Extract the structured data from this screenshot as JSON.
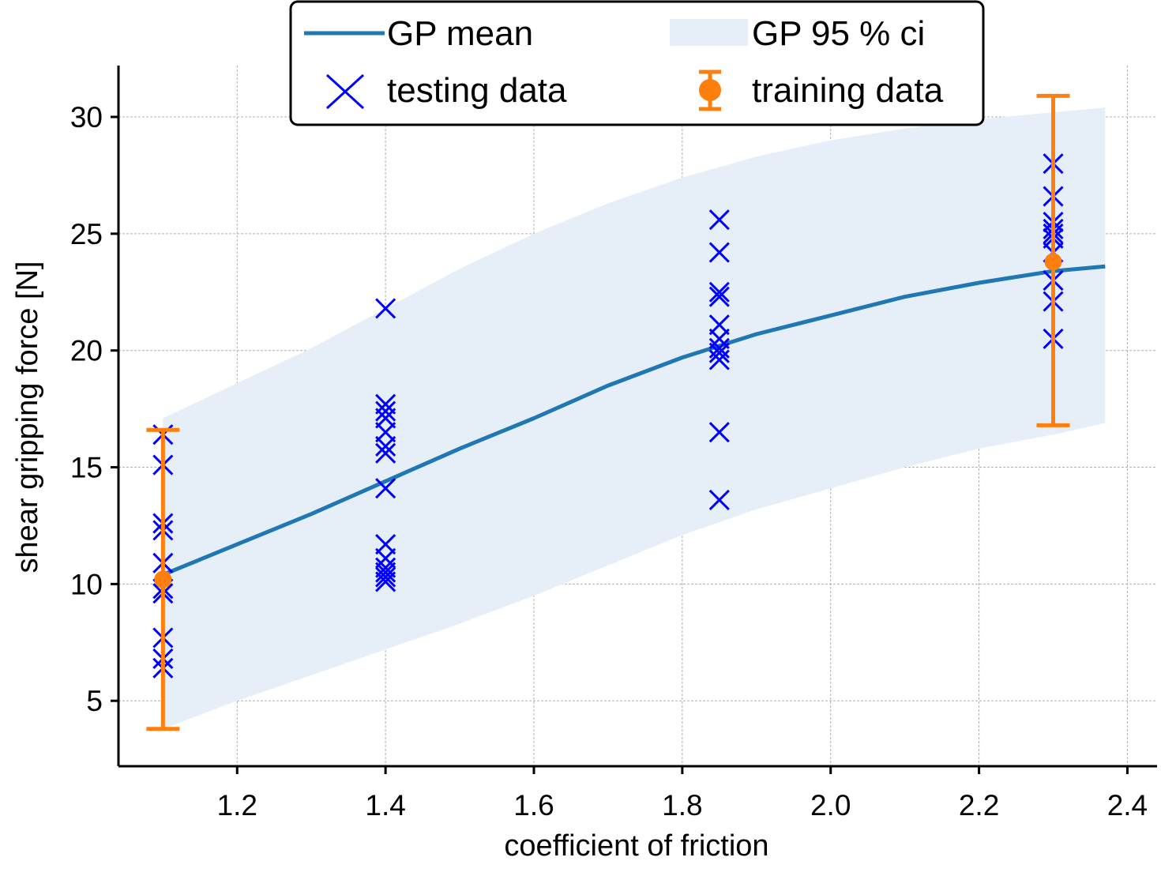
{
  "chart_data": {
    "type": "scatter",
    "title": "",
    "xlabel": "coefficient of friction",
    "ylabel": "shear gripping force [N]",
    "xlim": [
      1.04,
      2.44
    ],
    "ylim": [
      2.2,
      32.2
    ],
    "xticks": [
      1.2,
      1.4,
      1.6,
      1.8,
      2.0,
      2.2,
      2.4
    ],
    "xtick_labels": [
      "1.2",
      "1.4",
      "1.6",
      "1.8",
      "2.0",
      "2.2",
      "2.4"
    ],
    "yticks": [
      5,
      10,
      15,
      20,
      25,
      30
    ],
    "ytick_labels": [
      "5",
      "10",
      "15",
      "20",
      "25",
      "30"
    ],
    "grid": true,
    "legend_position": "top-center",
    "legend": {
      "gp_mean": "GP mean",
      "gp_ci": "GP 95 % ci",
      "testing": "testing data",
      "training": "training data"
    },
    "colors": {
      "gp_mean": "#1f77b4",
      "gp_ci": "#e6eff7",
      "testing": "#0000ff",
      "training": "#ff7f0e"
    },
    "gp_mean": {
      "x": [
        1.1,
        1.2,
        1.3,
        1.4,
        1.5,
        1.6,
        1.7,
        1.8,
        1.9,
        2.0,
        2.1,
        2.2,
        2.3,
        2.37
      ],
      "y": [
        10.4,
        11.7,
        13.0,
        14.4,
        15.8,
        17.1,
        18.5,
        19.7,
        20.7,
        21.5,
        22.3,
        22.9,
        23.4,
        23.6
      ]
    },
    "gp_ci": {
      "x": [
        1.1,
        1.2,
        1.3,
        1.4,
        1.5,
        1.6,
        1.7,
        1.8,
        1.9,
        2.0,
        2.1,
        2.2,
        2.3,
        2.37
      ],
      "lower": [
        3.8,
        5.0,
        6.1,
        7.2,
        8.3,
        9.5,
        10.8,
        12.1,
        13.2,
        14.1,
        15.0,
        15.8,
        16.4,
        16.9
      ],
      "upper": [
        17.1,
        18.6,
        20.1,
        21.8,
        23.5,
        25.0,
        26.3,
        27.4,
        28.3,
        29.0,
        29.5,
        29.9,
        30.2,
        30.4
      ]
    },
    "testing_data": [
      {
        "x": 1.1,
        "y": [
          16.4,
          15.1,
          12.6,
          12.3,
          10.9,
          9.8,
          9.6,
          7.7,
          6.8,
          6.4
        ]
      },
      {
        "x": 1.4,
        "y": [
          21.8,
          17.7,
          17.4,
          17.1,
          16.5,
          15.9,
          15.6,
          14.1,
          11.7,
          11.1,
          10.7,
          10.5,
          10.3,
          10.1
        ]
      },
      {
        "x": 1.85,
        "y": [
          25.6,
          24.2,
          22.5,
          22.3,
          21.1,
          20.5,
          20.1,
          19.9,
          19.6,
          16.5,
          13.6
        ]
      },
      {
        "x": 2.3,
        "y": [
          28.0,
          26.6,
          25.5,
          25.2,
          25.0,
          24.8,
          24.2,
          23.0,
          22.1,
          20.5
        ]
      }
    ],
    "training_data": [
      {
        "x": 1.1,
        "y": 10.2,
        "y_low": 3.8,
        "y_high": 16.6
      },
      {
        "x": 2.3,
        "y": 23.8,
        "y_low": 16.8,
        "y_high": 30.9
      }
    ]
  }
}
